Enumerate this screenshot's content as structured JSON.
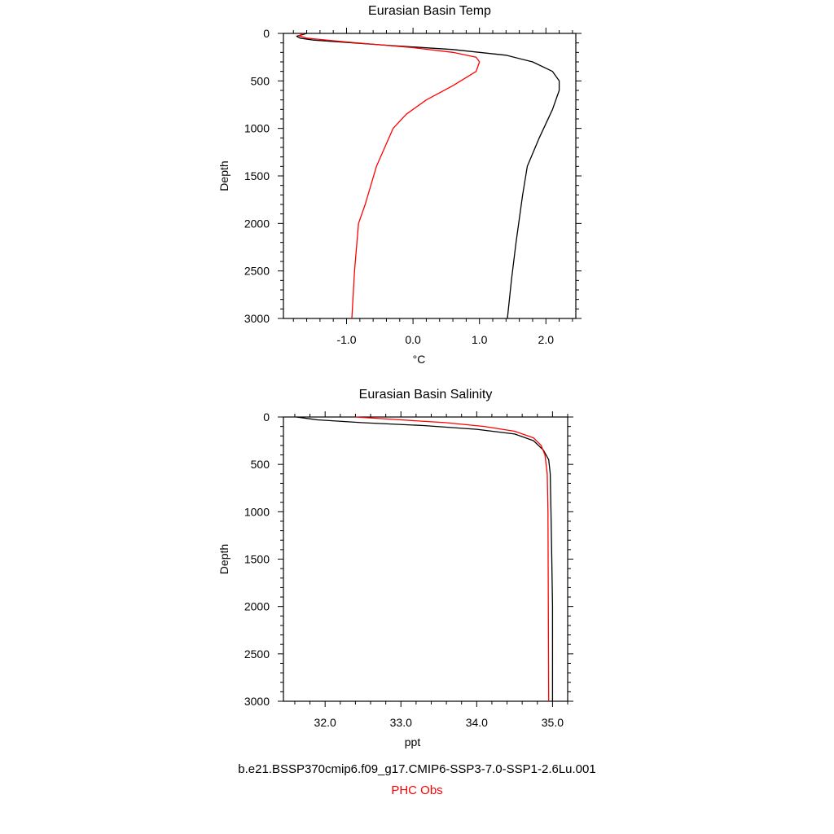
{
  "chart_data": [
    {
      "type": "line",
      "title": "Eurasian Basin Temp",
      "xlabel": "°C",
      "ylabel": "Depth",
      "xlim": [
        -1.95,
        2.45
      ],
      "ylim": [
        3000,
        0
      ],
      "y_reversed": true,
      "xticks": [
        -1.0,
        0.0,
        1.0,
        2.0
      ],
      "xtick_labels": [
        "-1.0",
        "0.0",
        "1.0",
        "2.0"
      ],
      "yticks": [
        0,
        500,
        1000,
        1500,
        2000,
        2500,
        3000
      ],
      "ytick_labels": [
        "0",
        "500",
        "1000",
        "1500",
        "2000",
        "2500",
        "3000"
      ],
      "grid": false,
      "series": [
        {
          "color": "#000000",
          "points": [
            [
              -1.6,
              0
            ],
            [
              -1.75,
              30
            ],
            [
              -1.7,
              50
            ],
            [
              -1.5,
              70
            ],
            [
              -0.5,
              120
            ],
            [
              0.6,
              170
            ],
            [
              1.4,
              230
            ],
            [
              1.8,
              300
            ],
            [
              2.1,
              400
            ],
            [
              2.2,
              500
            ],
            [
              2.2,
              600
            ],
            [
              2.1,
              800
            ],
            [
              1.9,
              1100
            ],
            [
              1.72,
              1400
            ],
            [
              1.65,
              1700
            ],
            [
              1.55,
              2200
            ],
            [
              1.48,
              2600
            ],
            [
              1.42,
              3000
            ]
          ]
        },
        {
          "color": "#ff0000",
          "points": [
            [
              -1.65,
              0
            ],
            [
              -1.72,
              25
            ],
            [
              -1.6,
              50
            ],
            [
              -1.0,
              90
            ],
            [
              0.0,
              150
            ],
            [
              0.6,
              200
            ],
            [
              0.95,
              250
            ],
            [
              1.0,
              300
            ],
            [
              0.95,
              400
            ],
            [
              0.6,
              550
            ],
            [
              0.2,
              700
            ],
            [
              -0.1,
              850
            ],
            [
              -0.3,
              1000
            ],
            [
              -0.55,
              1400
            ],
            [
              -0.72,
              1800
            ],
            [
              -0.82,
              2000
            ],
            [
              -0.88,
              2500
            ],
            [
              -0.92,
              3000
            ]
          ]
        }
      ]
    },
    {
      "type": "line",
      "title": "Eurasian Basin Salinity",
      "xlabel": "ppt",
      "ylabel": "Depth",
      "xlim": [
        31.45,
        35.2
      ],
      "ylim": [
        3000,
        0
      ],
      "y_reversed": true,
      "xticks": [
        32.0,
        33.0,
        34.0,
        35.0
      ],
      "xtick_labels": [
        "32.0",
        "33.0",
        "34.0",
        "35.0"
      ],
      "yticks": [
        0,
        500,
        1000,
        1500,
        2000,
        2500,
        3000
      ],
      "ytick_labels": [
        "0",
        "500",
        "1000",
        "1500",
        "2000",
        "2500",
        "3000"
      ],
      "grid": false,
      "series": [
        {
          "color": "#000000",
          "points": [
            [
              31.62,
              0
            ],
            [
              31.9,
              30
            ],
            [
              32.5,
              60
            ],
            [
              33.3,
              90
            ],
            [
              34.0,
              130
            ],
            [
              34.5,
              180
            ],
            [
              34.75,
              250
            ],
            [
              34.88,
              350
            ],
            [
              34.95,
              450
            ],
            [
              34.97,
              600
            ],
            [
              34.98,
              1000
            ],
            [
              34.99,
              1500
            ],
            [
              35.0,
              2000
            ],
            [
              35.0,
              3000
            ]
          ]
        },
        {
          "color": "#ff0000",
          "points": [
            [
              32.4,
              0
            ],
            [
              33.0,
              30
            ],
            [
              33.6,
              60
            ],
            [
              34.1,
              100
            ],
            [
              34.5,
              150
            ],
            [
              34.75,
              220
            ],
            [
              34.85,
              300
            ],
            [
              34.9,
              400
            ],
            [
              34.93,
              600
            ],
            [
              34.94,
              1000
            ],
            [
              34.95,
              3000
            ]
          ]
        }
      ]
    }
  ],
  "legend": {
    "model_label": "b.e21.BSSP370cmip6.f09_g17.CMIP6-SSP3-7.0-SSP1-2.6Lu.001",
    "obs_label": "PHC Obs",
    "model_color": "#000000",
    "obs_color": "#ff0000"
  }
}
